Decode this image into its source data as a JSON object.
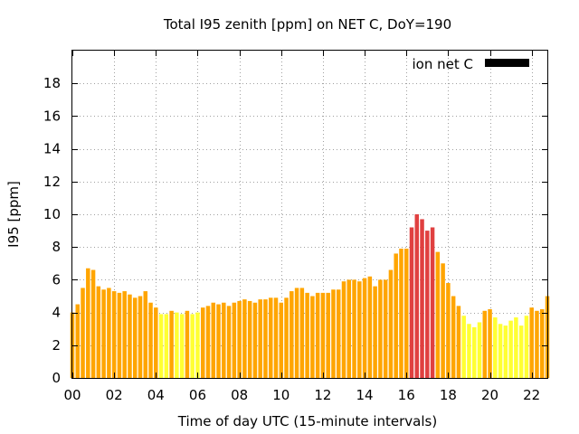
{
  "chart_data": {
    "type": "bar",
    "title": "Total I95 zenith [ppm] on NET C, DoY=190",
    "xlabel": "Time of day UTC (15-minute intervals)",
    "ylabel": "I95 [ppm]",
    "xlim": [
      0,
      22.75
    ],
    "ylim": [
      0,
      20
    ],
    "x_ticks": [
      0,
      2,
      4,
      6,
      8,
      10,
      12,
      14,
      16,
      18,
      20,
      22
    ],
    "x_tick_labels": [
      "00",
      "02",
      "04",
      "06",
      "08",
      "10",
      "12",
      "14",
      "16",
      "18",
      "20",
      "22"
    ],
    "y_ticks": [
      0,
      2,
      4,
      6,
      8,
      10,
      12,
      14,
      16,
      18
    ],
    "y_tick_labels": [
      "0",
      "2",
      "4",
      "6",
      "8",
      "10",
      "12",
      "14",
      "16",
      "18"
    ],
    "grid": true,
    "interval_hours": 0.25,
    "legend": {
      "label": "ion net C",
      "position": "top-right",
      "swatch_color": "#000000"
    },
    "colors": {
      "low": "#ffff33",
      "medium": "#ffa500",
      "high": "#e04040"
    },
    "series": [
      {
        "values": [
          4.0,
          4.5,
          5.5,
          6.7,
          6.6,
          5.6,
          5.4,
          5.5,
          5.3,
          5.2,
          5.3,
          5.1,
          4.9,
          5.0,
          5.3,
          4.6,
          4.3,
          3.9,
          3.9,
          4.1,
          4.0,
          3.9,
          4.1,
          3.9,
          4.0,
          4.3,
          4.4,
          4.6,
          4.5,
          4.6,
          4.4,
          4.6,
          4.7,
          4.8,
          4.7,
          4.6,
          4.8,
          4.8,
          4.9,
          4.9,
          4.6,
          4.9,
          5.3,
          5.5,
          5.5,
          5.2,
          5.0,
          5.2,
          5.2,
          5.2,
          5.4,
          5.4,
          5.9,
          6.0,
          6.0,
          5.9,
          6.1,
          6.2,
          5.6,
          6.0,
          6.0,
          6.6,
          7.6,
          7.9,
          7.9,
          9.2,
          10.0,
          9.7,
          9.0,
          9.2,
          7.7,
          7.0,
          5.8,
          5.0,
          4.4,
          3.8,
          3.3,
          3.1,
          3.4,
          4.1,
          4.2,
          3.7,
          3.3,
          3.2,
          3.5,
          3.7,
          3.2,
          3.8,
          4.3,
          4.1,
          4.2,
          5.0
        ],
        "levels": [
          "m",
          "m",
          "m",
          "m",
          "m",
          "m",
          "m",
          "m",
          "m",
          "m",
          "m",
          "m",
          "m",
          "m",
          "m",
          "m",
          "m",
          "l",
          "l",
          "m",
          "l",
          "l",
          "m",
          "l",
          "l",
          "m",
          "m",
          "m",
          "m",
          "m",
          "m",
          "m",
          "m",
          "m",
          "m",
          "m",
          "m",
          "m",
          "m",
          "m",
          "m",
          "m",
          "m",
          "m",
          "m",
          "m",
          "m",
          "m",
          "m",
          "m",
          "m",
          "m",
          "m",
          "m",
          "m",
          "m",
          "m",
          "m",
          "m",
          "m",
          "m",
          "m",
          "m",
          "m",
          "m",
          "h",
          "h",
          "h",
          "h",
          "h",
          "m",
          "m",
          "m",
          "m",
          "m",
          "l",
          "l",
          "l",
          "l",
          "m",
          "m",
          "l",
          "l",
          "l",
          "l",
          "l",
          "l",
          "l",
          "m",
          "m",
          "m",
          "m"
        ]
      }
    ]
  }
}
